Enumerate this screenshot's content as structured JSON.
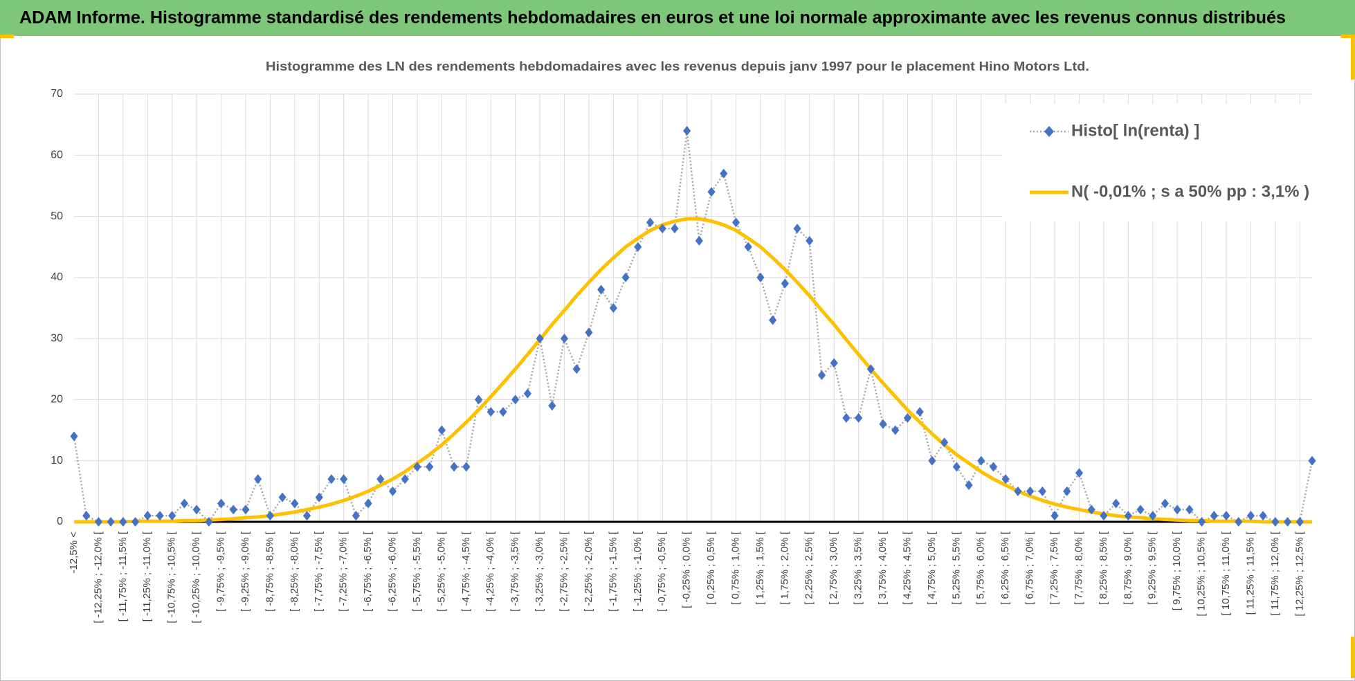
{
  "header": {
    "title": "ADAM Informe. Histogramme standardisé des rendements hebdomadaires en euros et une loi normale approximante avec les revenus connus distribués"
  },
  "chart_data": {
    "type": "line",
    "title": "Histogramme des LN des rendements hebdomadaires avec les revenus depuis janv 1997 pour le placement Hino Motors Ltd.",
    "categories": [
      "-12,5% <",
      null,
      "[ -12,25% ; -12,0% [",
      null,
      "[ -11,75% ; -11,5% [",
      null,
      "[ -11,25% ; -11,0% [",
      null,
      "[ -10,75% ; -10,5% [",
      null,
      "[ -10,25% ; -10,0% [",
      null,
      "[ -9,75% ; -9,5% [",
      null,
      "[ -9,25% ; -9,0% [",
      null,
      "[ -8,75% ; -8,5% [",
      null,
      "[ -8,25% ; -8,0% [",
      null,
      "[ -7,75% ; -7,5% [",
      null,
      "[ -7,25% ; -7,0% [",
      null,
      "[ -6,75% ; -6,5% [",
      null,
      "[ -6,25% ; -6,0% [",
      null,
      "[ -5,75% ; -5,5% [",
      null,
      "[ -5,25% ; -5,0% [",
      null,
      "[ -4,75% ; -4,5% [",
      null,
      "[ -4,25% ; -4,0% [",
      null,
      "[ -3,75% ; -3,5% [",
      null,
      "[ -3,25% ; -3,0% [",
      null,
      "[ -2,75% ; -2,5% [",
      null,
      "[ -2,25% ; -2,0% [",
      null,
      "[ -1,75% ; -1,5% [",
      null,
      "[ -1,25% ; -1,0% [",
      null,
      "[ -0,75% ; -0,5% [",
      null,
      "[ -0,25% ; 0,0% [",
      null,
      "[ 0,25% ; 0,5% [",
      null,
      "[ 0,75% ; 1,0% [",
      null,
      "[ 1,25% ; 1,5% [",
      null,
      "[ 1,75% ; 2,0% [",
      null,
      "[ 2,25% ; 2,5% [",
      null,
      "[ 2,75% ; 3,0% [",
      null,
      "[ 3,25% ; 3,5% [",
      null,
      "[ 3,75% ; 4,0% [",
      null,
      "[ 4,25% ; 4,5% [",
      null,
      "[ 4,75% ; 5,0% [",
      null,
      "[ 5,25% ; 5,5% [",
      null,
      "[ 5,75% ; 6,0% [",
      null,
      "[ 6,25% ; 6,5% [",
      null,
      "[ 6,75% ; 7,0% [",
      null,
      "[ 7,25% ; 7,5% [",
      null,
      "[ 7,75% ; 8,0% [",
      null,
      "[ 8,25% ; 8,5% [",
      null,
      "[ 8,75% ; 9,0% [",
      null,
      "[ 9,25% ; 9,5% [",
      null,
      "[ 9,75% ; 10,0% [",
      null,
      "[ 10,25% ; 10,5% [",
      null,
      "[ 10,75% ; 11,0% [",
      null,
      "[ 11,25% ; 11,5% [",
      null,
      "[ 11,75% ; 12,0% [",
      null,
      "[ 12,25% ; 12,5% [",
      null
    ],
    "series": [
      {
        "name": "Histo[ ln(renta) ]",
        "color": "#4472c4",
        "line_color": "#a6a6a6",
        "values": [
          14,
          1,
          0,
          0,
          0,
          0,
          1,
          1,
          1,
          3,
          2,
          0,
          3,
          2,
          2,
          7,
          1,
          4,
          3,
          1,
          4,
          7,
          7,
          1,
          3,
          7,
          5,
          7,
          9,
          9,
          15,
          9,
          9,
          20,
          18,
          18,
          20,
          21,
          30,
          19,
          30,
          25,
          31,
          38,
          35,
          40,
          45,
          49,
          48,
          48,
          64,
          46,
          54,
          57,
          49,
          45,
          40,
          33,
          39,
          48,
          46,
          24,
          26,
          17,
          17,
          25,
          16,
          15,
          17,
          18,
          10,
          13,
          9,
          6,
          10,
          9,
          7,
          5,
          5,
          5,
          1,
          5,
          8,
          2,
          1,
          3,
          1,
          2,
          1,
          3,
          2,
          2,
          0,
          1,
          1,
          0,
          1,
          1,
          0,
          0,
          0,
          10
        ]
      },
      {
        "name": "N( -0,01% ; s a 50% pp : 3,1% )",
        "color": "#ffc000",
        "values": [
          0,
          0,
          0,
          0,
          0,
          0.1,
          0.1,
          0.1,
          0.1,
          0.2,
          0.2,
          0.3,
          0.4,
          0.5,
          0.7,
          0.8,
          1.0,
          1.3,
          1.6,
          2.0,
          2.4,
          2.9,
          3.5,
          4.2,
          5.0,
          6.0,
          7.0,
          8.2,
          9.6,
          11.0,
          12.6,
          14.4,
          16.3,
          18.3,
          20.5,
          22.7,
          25.0,
          27.4,
          29.8,
          32.3,
          34.6,
          37.0,
          39.2,
          41.3,
          43.2,
          45.0,
          46.4,
          47.7,
          48.6,
          49.2,
          49.6,
          49.6,
          49.2,
          48.6,
          47.7,
          46.4,
          45.0,
          43.2,
          41.3,
          39.2,
          37.0,
          34.6,
          32.3,
          29.8,
          27.4,
          25.0,
          22.7,
          20.5,
          18.3,
          16.3,
          14.4,
          12.6,
          11.0,
          9.6,
          8.2,
          7.0,
          6.0,
          5.0,
          4.2,
          3.5,
          2.9,
          2.4,
          2.0,
          1.6,
          1.3,
          1.0,
          0.8,
          0.7,
          0.5,
          0.4,
          0.3,
          0.2,
          0.2,
          0.1,
          0.1,
          0.1,
          0.1,
          0,
          0,
          0,
          0,
          0
        ]
      }
    ],
    "ylim": [
      0,
      70
    ],
    "yticks": [
      0,
      10,
      20,
      30,
      40,
      50,
      60,
      70
    ],
    "grid": true,
    "legend": "upper right"
  }
}
